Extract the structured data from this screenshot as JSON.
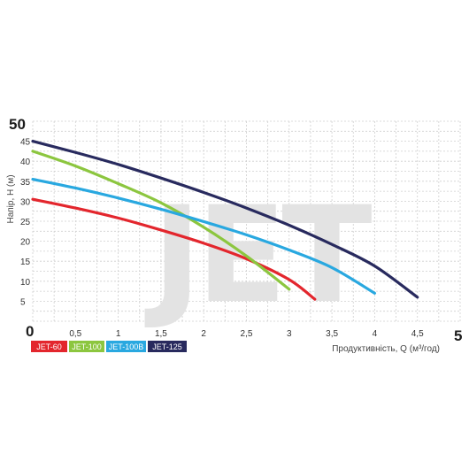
{
  "chart_data": {
    "type": "line",
    "title": "",
    "xlabel": "Продуктивність, Q (м³/год)",
    "ylabel": "Напір, H (м)",
    "xlim": [
      0,
      5
    ],
    "ylim": [
      0,
      50
    ],
    "x_ticks": [
      "0,5",
      "1",
      "1,5",
      "2",
      "2,5",
      "3",
      "3,5",
      "4",
      "4,5"
    ],
    "x_tick_values": [
      0.5,
      1,
      1.5,
      2,
      2.5,
      3,
      3.5,
      4,
      4.5
    ],
    "y_ticks": [
      "5",
      "10",
      "15",
      "20",
      "25",
      "30",
      "35",
      "40",
      "45"
    ],
    "y_tick_values": [
      5,
      10,
      15,
      20,
      25,
      30,
      35,
      40,
      45
    ],
    "x_min_label": "0",
    "x_max_label": "5",
    "y_max_label": "50",
    "grid": true,
    "legend_position": "bottom-left",
    "watermark": "JET",
    "series": [
      {
        "name": "JET-60",
        "color": "#e3262d",
        "x": [
          0,
          0.5,
          1,
          1.5,
          2,
          2.5,
          3,
          3.3
        ],
        "y": [
          30.5,
          28.3,
          25.8,
          22.8,
          19.5,
          15.6,
          10.4,
          5.5
        ]
      },
      {
        "name": "JET-100",
        "color": "#8cc63f",
        "x": [
          0,
          0.5,
          1,
          1.5,
          2,
          2.5,
          3
        ],
        "y": [
          42.5,
          38.8,
          34.4,
          29.6,
          23.5,
          16.3,
          8
        ]
      },
      {
        "name": "JET-100В",
        "color": "#29a8e0",
        "x": [
          0,
          0.5,
          1,
          1.5,
          2,
          2.5,
          3,
          3.5,
          4
        ],
        "y": [
          35.5,
          33.3,
          30.8,
          28,
          24.9,
          21.6,
          17.8,
          13.4,
          7
        ]
      },
      {
        "name": "JET-125",
        "color": "#282a5e",
        "x": [
          0,
          0.5,
          1,
          1.5,
          2,
          2.5,
          3,
          3.5,
          4,
          4.5
        ],
        "y": [
          45,
          42.2,
          39.2,
          35.8,
          32.2,
          28.3,
          24,
          19.2,
          13.8,
          6
        ]
      }
    ]
  }
}
